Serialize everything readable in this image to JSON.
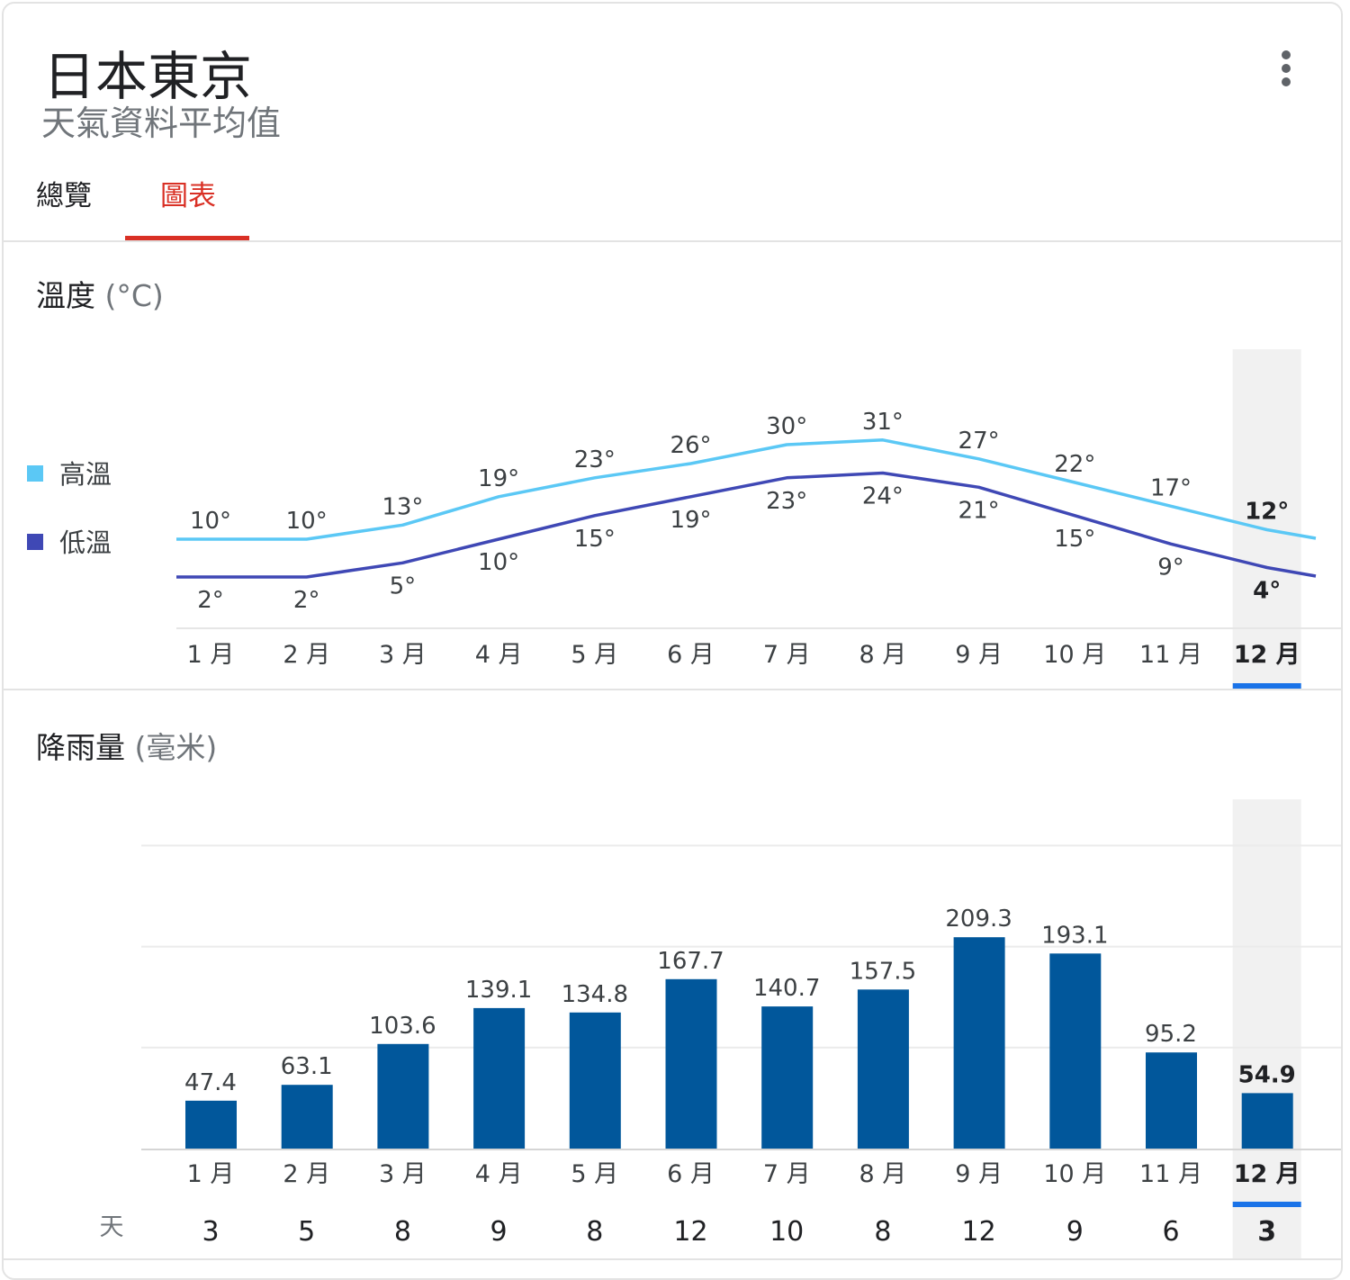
{
  "header": {
    "title": "日本東京",
    "subtitle": "天氣資料平均值"
  },
  "tabs": [
    {
      "label": "總覽",
      "active": false
    },
    {
      "label": "圖表",
      "active": true
    }
  ],
  "temperature": {
    "title": "溫度",
    "unit": "(°C)",
    "legend": [
      {
        "label": "高溫",
        "color": "#5bc8f5"
      },
      {
        "label": "低溫",
        "color": "#3f48b5"
      }
    ]
  },
  "precipitation": {
    "title": "降雨量",
    "unit": "(毫米)",
    "days_label": "天"
  },
  "selected_month_index": 11,
  "chart_data": [
    {
      "type": "line",
      "categories": [
        "1 月",
        "2 月",
        "3 月",
        "4 月",
        "5 月",
        "6 月",
        "7 月",
        "8 月",
        "9 月",
        "10 月",
        "11 月",
        "12 月"
      ],
      "series": [
        {
          "name": "高溫",
          "color": "#5bc8f5",
          "values": [
            10,
            10,
            13,
            19,
            23,
            26,
            30,
            31,
            27,
            22,
            17,
            12
          ]
        },
        {
          "name": "低溫",
          "color": "#3f48b5",
          "values": [
            2,
            2,
            5,
            10,
            15,
            19,
            23,
            24,
            21,
            15,
            9,
            4
          ]
        }
      ],
      "ylabel": "溫度 (°C)",
      "value_suffix": "°"
    },
    {
      "type": "bar",
      "categories": [
        "1 月",
        "2 月",
        "3 月",
        "4 月",
        "5 月",
        "6 月",
        "7 月",
        "8 月",
        "9 月",
        "10 月",
        "11 月",
        "12 月"
      ],
      "values": [
        47.4,
        63.1,
        103.6,
        139.1,
        134.8,
        167.7,
        140.7,
        157.5,
        209.3,
        193.1,
        95.2,
        54.9
      ],
      "days": [
        3,
        5,
        8,
        9,
        8,
        12,
        10,
        8,
        12,
        9,
        6,
        3
      ],
      "ylabel": "降雨量 (毫米)",
      "ylim": [
        0,
        300
      ],
      "grid": true,
      "color": "#01579b"
    }
  ]
}
